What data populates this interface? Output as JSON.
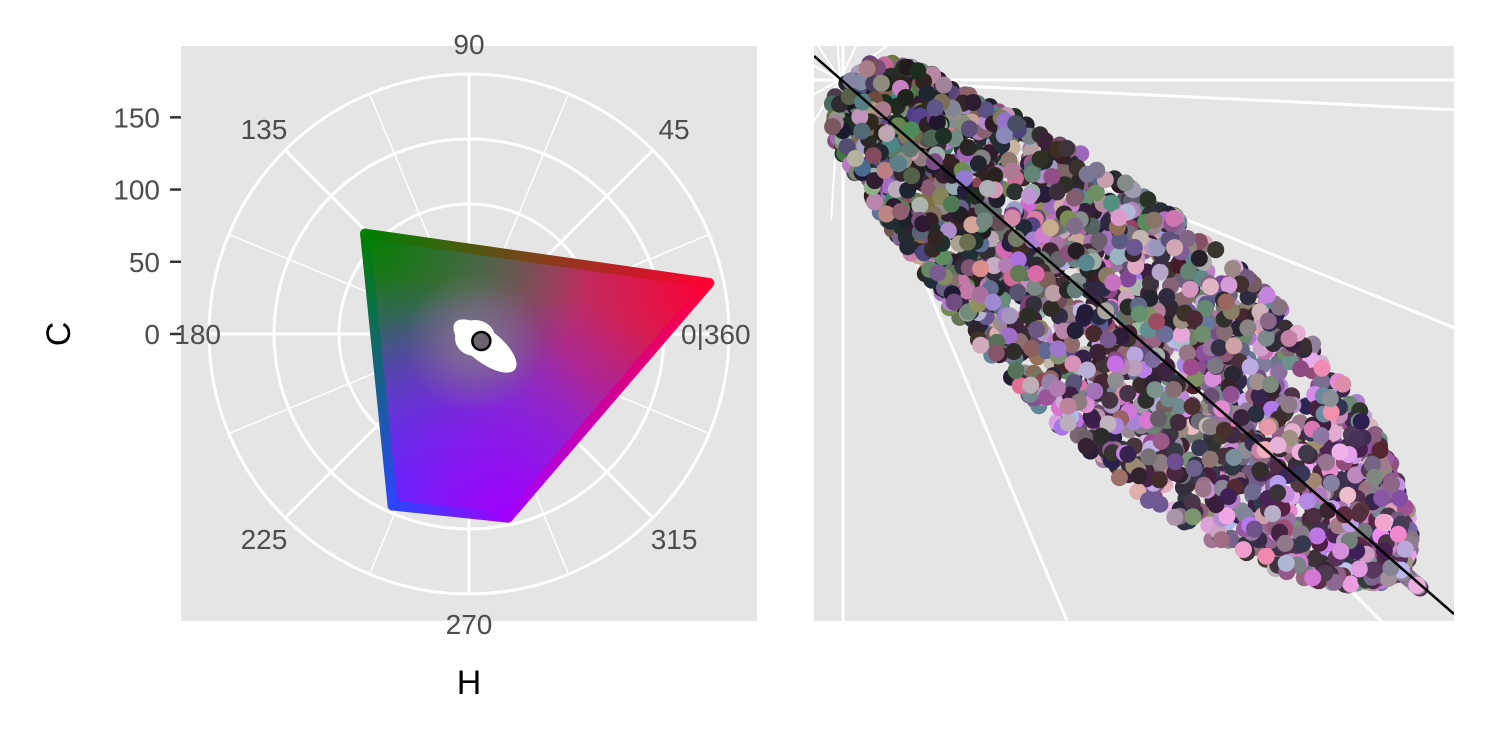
{
  "chart_data": [
    {
      "type": "scatter",
      "coord": "polar",
      "xlabel": "H",
      "ylabel": "C",
      "theta_ticks": [
        "0|360",
        "45",
        "90",
        "135",
        "180",
        "225",
        "270",
        "315"
      ],
      "theta_tick_values": [
        0,
        45,
        90,
        135,
        180,
        225,
        270,
        315
      ],
      "r_ticks": [
        "0",
        "50",
        "100",
        "150"
      ],
      "r_tick_values": [
        0,
        50,
        100,
        150
      ],
      "r_range": [
        0,
        180
      ],
      "grid": true,
      "gamut_vertices_HC": [
        {
          "H": 12,
          "C": 170,
          "color": "#ff0033"
        },
        {
          "H": 136,
          "C": 100,
          "color": "#008000"
        },
        {
          "H": 246,
          "C": 130,
          "color": "#2a46ff"
        },
        {
          "H": 282,
          "C": 130,
          "color": "#a100ff"
        }
      ],
      "highlight_point": {
        "H": 0,
        "C": 3,
        "color": "#6e6470"
      }
    },
    {
      "type": "scatter",
      "grid": true,
      "xlabel": "",
      "ylabel": "",
      "point_count": 2600,
      "dark_end_color": "#3a3a3a",
      "light_end_color": "#7a4f7e",
      "reference_line": true
    }
  ],
  "colors": {
    "panel_background": "#e5e5e5",
    "grid_line": "#ffffff",
    "tick_text": "#4d4d4d",
    "reference_line": "#000000"
  }
}
